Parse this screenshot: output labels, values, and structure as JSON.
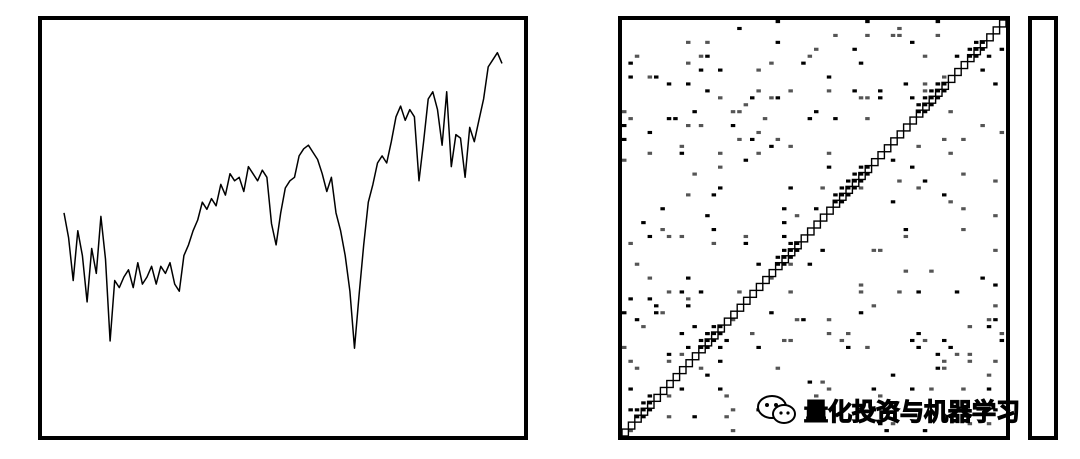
{
  "chart_data": [
    {
      "type": "line",
      "title": "",
      "xlabel": "",
      "ylabel": "",
      "grid": false,
      "y": [
        52,
        45,
        33,
        47,
        40,
        27,
        42,
        35,
        51,
        39,
        16,
        33,
        31,
        34,
        36,
        31,
        38,
        32,
        34,
        37,
        32,
        37,
        35,
        38,
        32,
        30,
        40,
        43,
        47,
        50,
        55,
        53,
        56,
        54,
        60,
        57,
        63,
        61,
        62,
        58,
        65,
        63,
        61,
        64,
        62,
        49,
        43,
        52,
        59,
        61,
        62,
        68,
        70,
        71,
        69,
        67,
        63,
        58,
        62,
        52,
        47,
        40,
        30,
        14,
        29,
        43,
        55,
        60,
        66,
        68,
        66,
        72,
        79,
        82,
        78,
        81,
        79,
        61,
        72,
        84,
        86,
        81,
        71,
        86,
        65,
        74,
        73,
        62,
        76,
        72,
        78,
        84,
        93,
        95,
        97,
        94
      ]
    },
    {
      "type": "heatmap",
      "title": "",
      "xlabel": "",
      "ylabel": "",
      "grid": false,
      "diagonal_blocks": 6,
      "colorbar": true
    }
  ],
  "watermark": {
    "text": "量化投资与机器学习",
    "icon": "wechat-icon"
  }
}
